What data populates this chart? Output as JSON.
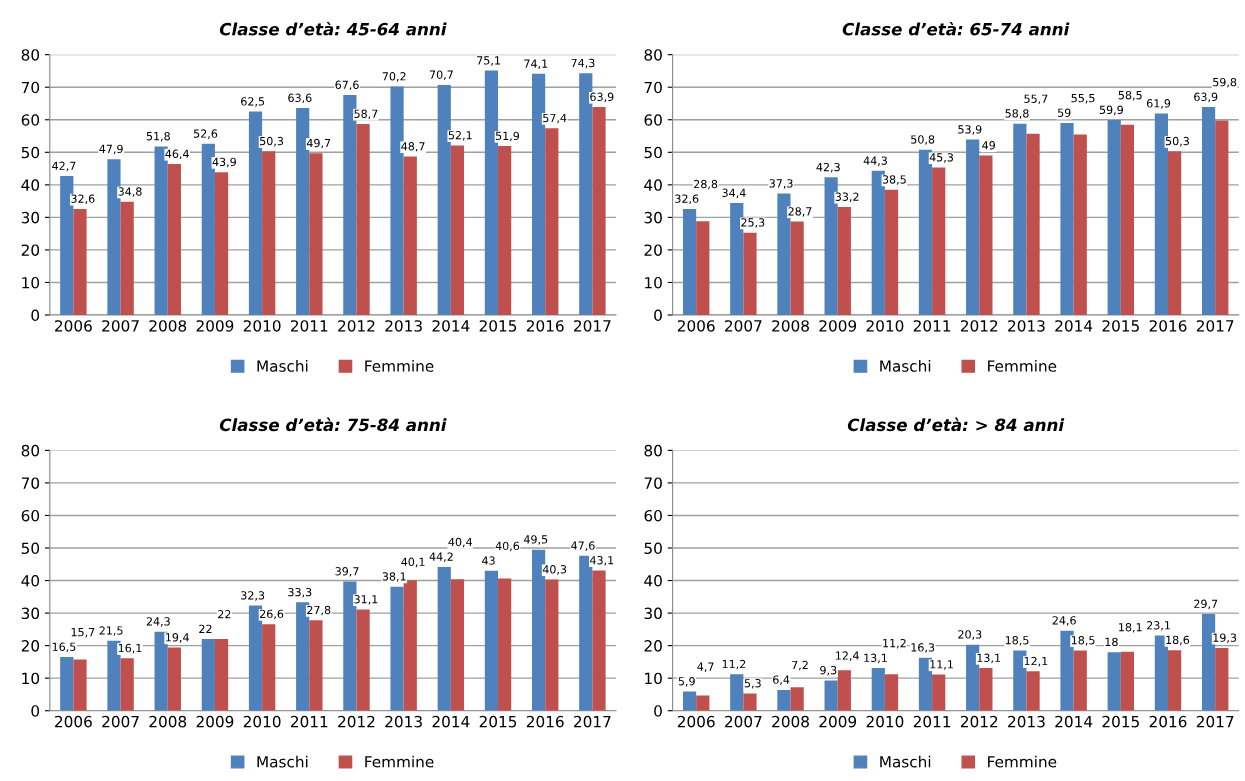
{
  "chart_data": [
    {
      "type": "bar",
      "title": "Classe d’età: 45-64 anni",
      "categories": [
        "2006",
        "2007",
        "2008",
        "2009",
        "2010",
        "2011",
        "2012",
        "2013",
        "2014",
        "2015",
        "2016",
        "2017"
      ],
      "ylim": [
        0,
        80
      ],
      "yticks": [
        0,
        10,
        20,
        30,
        40,
        50,
        60,
        70,
        80
      ],
      "grid": "y",
      "legend": "bottom",
      "series": [
        {
          "name": "Maschi",
          "color": "#4f81bd",
          "values": [
            42.7,
            47.9,
            51.8,
            52.6,
            62.5,
            63.6,
            67.6,
            70.2,
            70.7,
            75.1,
            74.1,
            74.3
          ],
          "value_labels": [
            "42,7",
            "47,9",
            "51,8",
            "52,6",
            "62,5",
            "63,6",
            "67,6",
            "70,2",
            "70,7",
            "75,1",
            "74,1",
            "74,3"
          ]
        },
        {
          "name": "Femmine",
          "color": "#c0504d",
          "values": [
            32.6,
            34.8,
            46.4,
            43.9,
            50.3,
            49.7,
            58.7,
            48.7,
            52.1,
            51.9,
            57.4,
            63.9
          ],
          "value_labels": [
            "32,6",
            "34,8",
            "46,4",
            "43,9",
            "50,3",
            "49,7",
            "58,7",
            "48,7",
            "52,1",
            "51,9",
            "57,4",
            "63,9"
          ]
        }
      ]
    },
    {
      "type": "bar",
      "title": "Classe d’età: 65-74 anni",
      "categories": [
        "2006",
        "2007",
        "2008",
        "2009",
        "2010",
        "2011",
        "2012",
        "2013",
        "2014",
        "2015",
        "2016",
        "2017"
      ],
      "ylim": [
        0,
        80
      ],
      "yticks": [
        0,
        10,
        20,
        30,
        40,
        50,
        60,
        70,
        80
      ],
      "grid": "y",
      "legend": "bottom",
      "series": [
        {
          "name": "Maschi",
          "color": "#4f81bd",
          "values": [
            32.6,
            34.4,
            37.3,
            42.3,
            44.3,
            50.8,
            53.9,
            58.8,
            59,
            59.9,
            61.9,
            63.9
          ],
          "value_labels": [
            "32,6",
            "34,4",
            "37,3",
            "42,3",
            "44,3",
            "50,8",
            "53,9",
            "58,8",
            "59",
            "59,9",
            "61,9",
            "63,9"
          ]
        },
        {
          "name": "Femmine",
          "color": "#c0504d",
          "values": [
            28.8,
            25.3,
            28.7,
            33.2,
            38.5,
            45.3,
            49,
            55.7,
            55.5,
            58.5,
            50.3,
            59.8
          ],
          "value_labels": [
            "28,8",
            "25,3",
            "28,7",
            "33,2",
            "38,5",
            "45,3",
            "49",
            "55,7",
            "55,5",
            "58,5",
            "50,3",
            "59,8"
          ]
        }
      ]
    },
    {
      "type": "bar",
      "title": "Classe d’età: 75-84 anni",
      "categories": [
        "2006",
        "2007",
        "2008",
        "2009",
        "2010",
        "2011",
        "2012",
        "2013",
        "2014",
        "2015",
        "2016",
        "2017"
      ],
      "ylim": [
        0,
        80
      ],
      "yticks": [
        0,
        10,
        20,
        30,
        40,
        50,
        60,
        70,
        80
      ],
      "grid": "y",
      "legend": "bottom",
      "series": [
        {
          "name": "Maschi",
          "color": "#4f81bd",
          "values": [
            16.5,
            21.5,
            24.3,
            22,
            32.3,
            33.3,
            39.7,
            38.1,
            44.2,
            43,
            49.5,
            47.6
          ],
          "value_labels": [
            "16,5",
            "21,5",
            "24,3",
            "22",
            "32,3",
            "33,3",
            "39,7",
            "38,1",
            "44,2",
            "43",
            "49,5",
            "47,6"
          ]
        },
        {
          "name": "Femmine",
          "color": "#c0504d",
          "values": [
            15.7,
            16.1,
            19.4,
            22,
            26.6,
            27.8,
            31.1,
            40.1,
            40.4,
            40.6,
            40.3,
            43.1
          ],
          "value_labels": [
            "15,7",
            "16,1",
            "19,4",
            "22",
            "26,6",
            "27,8",
            "31,1",
            "40,1",
            "40,4",
            "40,6",
            "40,3",
            "43,1"
          ]
        }
      ]
    },
    {
      "type": "bar",
      "title": "Classe d’età: > 84 anni",
      "categories": [
        "2006",
        "2007",
        "2008",
        "2009",
        "2010",
        "2011",
        "2012",
        "2013",
        "2014",
        "2015",
        "2016",
        "2017"
      ],
      "ylim": [
        0,
        80
      ],
      "yticks": [
        0,
        10,
        20,
        30,
        40,
        50,
        60,
        70,
        80
      ],
      "grid": "y",
      "legend": "bottom",
      "series": [
        {
          "name": "Maschi",
          "color": "#4f81bd",
          "values": [
            5.9,
            11.2,
            6.4,
            9.3,
            13.1,
            16.3,
            20.3,
            18.5,
            24.6,
            18,
            23.1,
            29.7
          ],
          "value_labels": [
            "5,9",
            "11,2",
            "6,4",
            "9,3",
            "13,1",
            "16,3",
            "20,3",
            "18,5",
            "24,6",
            "18",
            "23,1",
            "29,7"
          ]
        },
        {
          "name": "Femmine",
          "color": "#c0504d",
          "values": [
            4.7,
            5.3,
            7.2,
            12.4,
            11.2,
            11.1,
            13.1,
            12.1,
            18.5,
            18.1,
            18.6,
            19.3
          ],
          "value_labels": [
            "4,7",
            "5,3",
            "7,2",
            "12,4",
            "11,2",
            "11,1",
            "13,1",
            "12,1",
            "18,5",
            "18,1",
            "18,6",
            "19,3"
          ]
        }
      ]
    }
  ]
}
